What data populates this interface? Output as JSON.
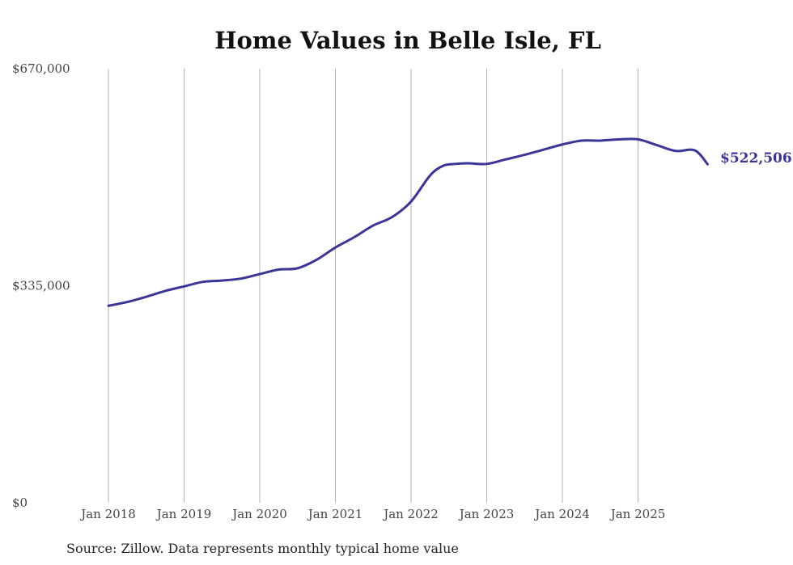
{
  "chart_data": {
    "type": "line",
    "title": "Home Values in Belle Isle, FL",
    "source": "Source: Zillow. Data represents monthly typical home value",
    "y_ticks": [
      "$0",
      "$335,000",
      "$670,000"
    ],
    "y_tick_values": [
      0,
      335000,
      670000
    ],
    "ylim": [
      0,
      670000
    ],
    "x_ticks": [
      "Jan 2018",
      "Jan 2019",
      "Jan 2020",
      "Jan 2021",
      "Jan 2022",
      "Jan 2023",
      "Jan 2024",
      "Jan 2025"
    ],
    "x_tick_values": [
      2018,
      2019,
      2020,
      2021,
      2022,
      2023,
      2024,
      2025
    ],
    "xlim": [
      2018,
      2026
    ],
    "grid": "vertical",
    "series": [
      {
        "name": "Typical home value",
        "color": "#3a3596",
        "end_label": "$522,506",
        "x": [
          2018.0,
          2018.25,
          2018.5,
          2018.75,
          2019.0,
          2019.25,
          2019.5,
          2019.75,
          2020.0,
          2020.25,
          2020.5,
          2020.75,
          2021.0,
          2021.25,
          2021.5,
          2021.75,
          2022.0,
          2022.25,
          2022.42,
          2022.58,
          2022.75,
          2023.0,
          2023.25,
          2023.5,
          2023.75,
          2024.0,
          2024.25,
          2024.5,
          2024.75,
          2025.0,
          2025.25,
          2025.5,
          2025.75,
          2025.92
        ],
        "values": [
          304000,
          310000,
          318000,
          327000,
          334000,
          341000,
          343000,
          346000,
          353000,
          360000,
          362000,
          375000,
          394000,
          410000,
          428000,
          441000,
          465000,
          505000,
          520000,
          523000,
          524000,
          523000,
          530000,
          537000,
          545000,
          553000,
          559000,
          559000,
          561000,
          561000,
          552000,
          543000,
          544000,
          522506
        ]
      }
    ]
  }
}
